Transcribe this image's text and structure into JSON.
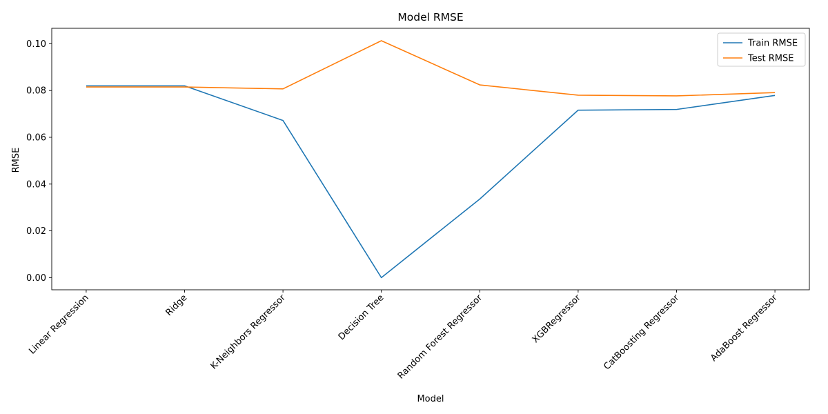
{
  "chart_data": {
    "type": "line",
    "title": "Model RMSE",
    "xlabel": "Model",
    "ylabel": "RMSE",
    "categories": [
      "Linear Regression",
      "Ridge",
      "K-Neighbors Regressor",
      "Decision Tree",
      "Random Forest Regressor",
      "XGBRegressor",
      "CatBoosting Regressor",
      "AdaBoost Regressor"
    ],
    "series": [
      {
        "name": "Train RMSE",
        "color": "#1f77b4",
        "values": [
          0.082,
          0.082,
          0.0672,
          0.0,
          0.0336,
          0.0716,
          0.0719,
          0.0779
        ]
      },
      {
        "name": "Test RMSE",
        "color": "#ff7f0e",
        "values": [
          0.0815,
          0.0815,
          0.0807,
          0.1013,
          0.0824,
          0.078,
          0.0777,
          0.0791
        ]
      }
    ],
    "ylim": [
      -0.0052,
      0.1066
    ],
    "yticks": [
      "0.00",
      "0.02",
      "0.04",
      "0.06",
      "0.08",
      "0.10"
    ],
    "ytick_values": [
      0,
      0.02,
      0.04,
      0.06,
      0.08,
      0.1
    ],
    "xtick_rotation": 45,
    "legend_position": "top-right",
    "grid": false
  }
}
